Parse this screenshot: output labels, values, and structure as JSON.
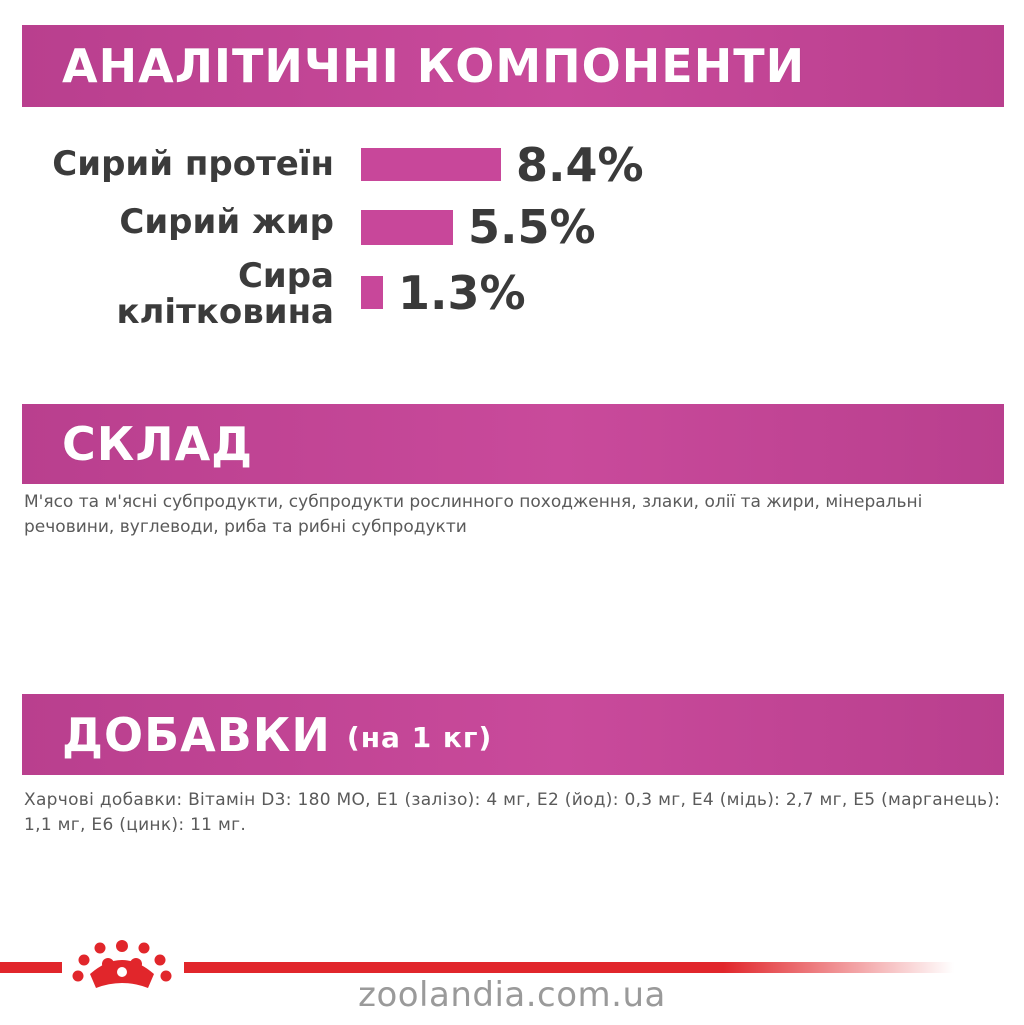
{
  "sections": {
    "analytic": {
      "title": "АНАЛІТИЧНІ КОМПОНЕНТИ"
    },
    "composition": {
      "title": "СКЛАД",
      "text": "М'ясо та м'ясні субпродукти, субпродукти рослинного походження, злаки, олії та жири, мінеральні речовини, вуглеводи, риба та рибні субпродукти"
    },
    "additives": {
      "title": "ДОБАВКИ",
      "subtitle": "(на 1 кг)",
      "text": "Харчові добавки: Вітамін D3: 180 МО, E1 (залізо): 4 мг, E2 (йод): 0,3 мг, E4 (мідь): 2,7 мг, E5 (марганець): 1,1 мг, E6 (цинк): 11 мг."
    }
  },
  "metrics": [
    {
      "label": "Сирий протеїн",
      "value": "8.4%",
      "number": 8.4
    },
    {
      "label": "Сирий жир",
      "value": "5.5%",
      "number": 5.5
    },
    {
      "label": "Сира клітковина",
      "value": "1.3%",
      "number": 1.3
    }
  ],
  "colors": {
    "accent": "#c8479a",
    "brand_red": "#e1262b",
    "text": "#3a3a3a"
  },
  "logo": {
    "icon": "royal-canin-crown-icon"
  },
  "watermark": "zoolandia.com.ua"
}
